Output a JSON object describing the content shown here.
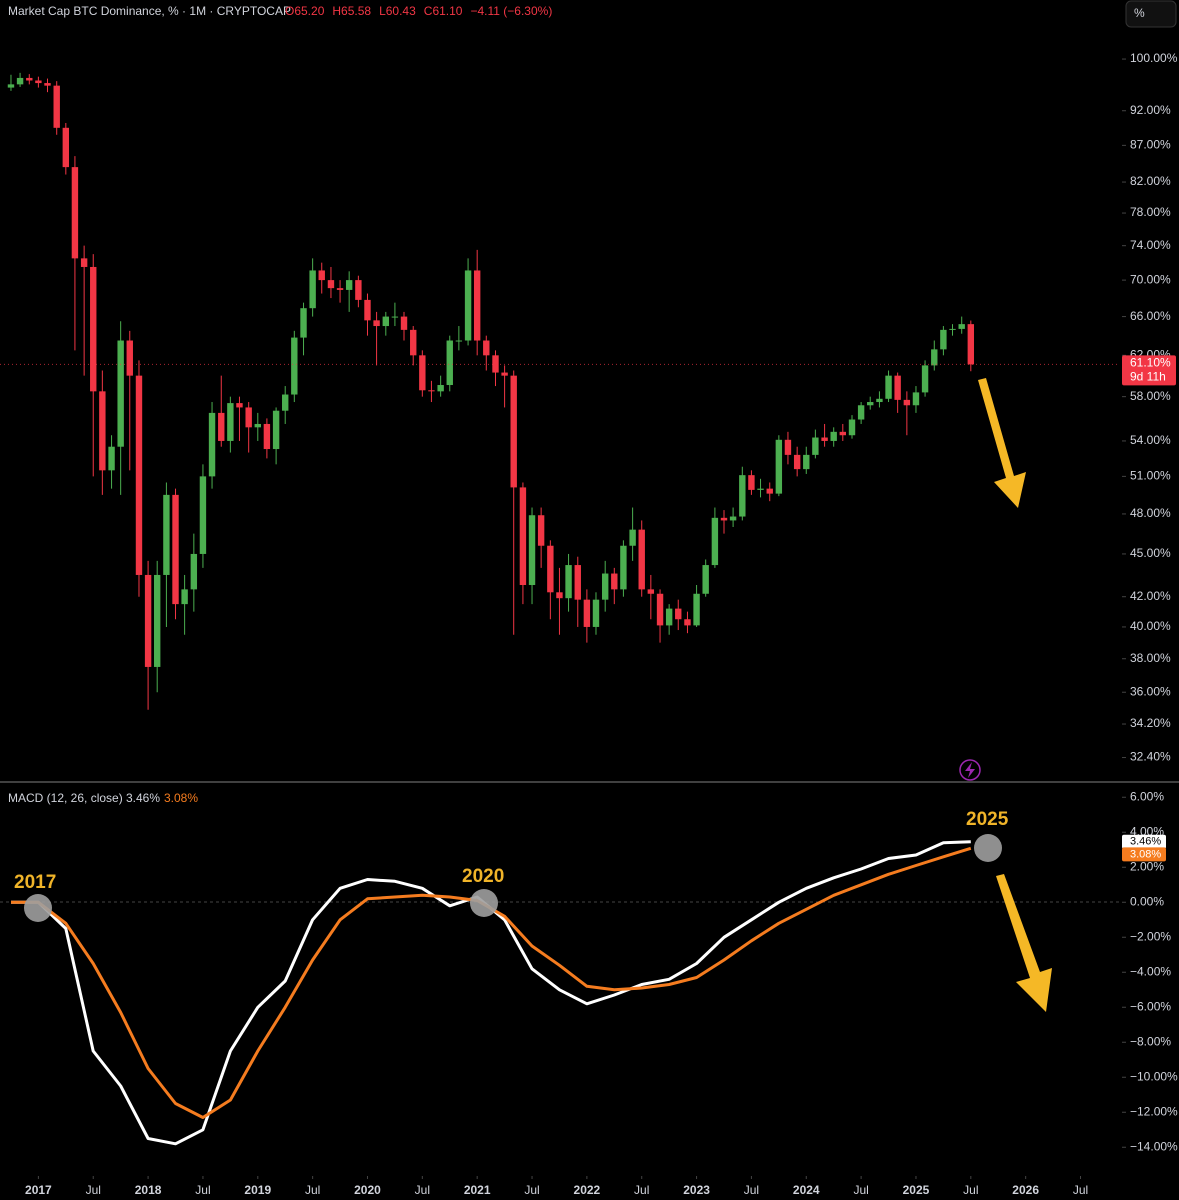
{
  "chart_data": [
    {
      "type": "candlestick",
      "title": "Market Cap BTC Dominance, % · 1M · CRYPTOCAP",
      "ohlc": [
        "O65.20",
        "H65.58",
        "L60.43",
        "C61.10",
        "−4.11 (−6.30%)"
      ],
      "scale_button": "%",
      "last_price_label": "61.10%",
      "countdown": "9d 11h",
      "up_color": "#4caf50",
      "down_color": "#f23645",
      "log_scale": true,
      "grid": false,
      "xlim": [
        2016.65,
        2026.86
      ],
      "ylim": [
        31.5,
        104.8
      ],
      "yticks": [
        {
          "value": 100,
          "label": "100.00%"
        },
        {
          "value": 92,
          "label": "92.00%"
        },
        {
          "value": 87,
          "label": "87.00%"
        },
        {
          "value": 82,
          "label": "82.00%"
        },
        {
          "value": 78,
          "label": "78.00%"
        },
        {
          "value": 74,
          "label": "74.00%"
        },
        {
          "value": 70,
          "label": "70.00%"
        },
        {
          "value": 66,
          "label": "66.00%"
        },
        {
          "value": 62,
          "label": "62.00%"
        },
        {
          "value": 58,
          "label": "58.00%"
        },
        {
          "value": 54,
          "label": "54.00%"
        },
        {
          "value": 51,
          "label": "51.00%"
        },
        {
          "value": 48,
          "label": "48.00%"
        },
        {
          "value": 45,
          "label": "45.00%"
        },
        {
          "value": 42,
          "label": "42.00%"
        },
        {
          "value": 40,
          "label": "40.00%"
        },
        {
          "value": 38,
          "label": "38.00%"
        },
        {
          "value": 36,
          "label": "36.00%"
        },
        {
          "value": 34.2,
          "label": "34.20%"
        },
        {
          "value": 32.4,
          "label": "32.40%"
        }
      ],
      "x": [
        2016.75,
        2016.833,
        2016.917,
        2017,
        2017.083,
        2017.167,
        2017.25,
        2017.333,
        2017.417,
        2017.5,
        2017.583,
        2017.667,
        2017.75,
        2017.833,
        2017.917,
        2018,
        2018.083,
        2018.167,
        2018.25,
        2018.333,
        2018.417,
        2018.5,
        2018.583,
        2018.667,
        2018.75,
        2018.833,
        2018.917,
        2019,
        2019.083,
        2019.167,
        2019.25,
        2019.333,
        2019.417,
        2019.5,
        2019.583,
        2019.667,
        2019.75,
        2019.833,
        2019.917,
        2020,
        2020.083,
        2020.167,
        2020.25,
        2020.333,
        2020.417,
        2020.5,
        2020.583,
        2020.667,
        2020.75,
        2020.833,
        2020.917,
        2021,
        2021.083,
        2021.167,
        2021.25,
        2021.333,
        2021.417,
        2021.5,
        2021.583,
        2021.667,
        2021.75,
        2021.833,
        2021.917,
        2022,
        2022.083,
        2022.167,
        2022.25,
        2022.333,
        2022.417,
        2022.5,
        2022.583,
        2022.667,
        2022.75,
        2022.833,
        2022.917,
        2023,
        2023.083,
        2023.167,
        2023.25,
        2023.333,
        2023.417,
        2023.5,
        2023.583,
        2023.667,
        2023.75,
        2023.833,
        2023.917,
        2024,
        2024.083,
        2024.167,
        2024.25,
        2024.333,
        2024.417,
        2024.5,
        2024.583,
        2024.667,
        2024.75,
        2024.833,
        2024.917,
        2025,
        2025.083,
        2025.167,
        2025.25,
        2025.333,
        2025.417,
        2025.5
      ],
      "open": [
        95.5,
        96.0,
        97.0,
        96.6,
        96.2,
        95.8,
        89.5,
        84.0,
        72.5,
        71.5,
        58.5,
        51.5,
        53.5,
        63.5,
        60.0,
        43.5,
        37.5,
        43.5,
        49.5,
        41.5,
        42.5,
        45.0,
        51.0,
        56.5,
        54.0,
        57.4,
        57.0,
        55.2,
        55.5,
        53.3,
        56.7,
        58.2,
        63.8,
        66.9,
        71.1,
        70.0,
        69.1,
        68.9,
        70.0,
        67.8,
        65.6,
        65.0,
        66.0,
        66.0,
        64.6,
        62.0,
        58.6,
        58.5,
        59.1,
        63.5,
        63.5,
        71.1,
        63.5,
        62.0,
        60.3,
        60.0,
        50.1,
        42.8,
        47.9,
        45.6,
        42.3,
        41.9,
        44.2,
        41.8,
        40.0,
        41.8,
        43.6,
        42.5,
        45.6,
        46.8,
        42.5,
        42.2,
        40.1,
        41.2,
        40.5,
        40.1,
        42.2,
        44.2,
        47.7,
        47.5,
        47.8,
        51.1,
        49.9,
        50.0,
        49.6,
        54.1,
        52.8,
        51.6,
        52.8,
        54.3,
        54.0,
        54.8,
        54.5,
        55.9,
        57.2,
        57.5,
        57.8,
        60.0,
        57.7,
        57.2,
        58.4,
        61.0,
        62.6,
        64.6,
        64.7,
        65.2
      ],
      "high": [
        97.5,
        97.8,
        97.6,
        97.2,
        96.9,
        96.5,
        90.2,
        85.5,
        74.0,
        73.0,
        60.5,
        54.5,
        65.5,
        64.5,
        61.5,
        44.5,
        44.5,
        50.5,
        50.0,
        43.5,
        46.5,
        52.0,
        57.5,
        60.0,
        58.0,
        58.0,
        57.5,
        56.5,
        56.0,
        57.0,
        59.0,
        64.5,
        67.5,
        72.5,
        72.0,
        71.5,
        70.0,
        71.0,
        70.5,
        68.5,
        66.5,
        66.5,
        67.5,
        66.5,
        65.0,
        62.5,
        59.5,
        60.0,
        64.0,
        65.0,
        72.5,
        73.5,
        64.0,
        62.5,
        61.0,
        60.5,
        50.5,
        48.5,
        48.5,
        46.0,
        44.0,
        45.0,
        44.8,
        42.5,
        42.3,
        44.5,
        44.0,
        46.0,
        48.5,
        47.5,
        43.5,
        42.5,
        41.5,
        41.8,
        41.0,
        42.8,
        44.6,
        48.5,
        48.3,
        48.5,
        51.8,
        51.5,
        50.8,
        50.5,
        54.5,
        54.8,
        53.5,
        53.5,
        55.0,
        55.5,
        55.2,
        55.5,
        56.3,
        57.5,
        58.0,
        58.5,
        60.5,
        60.3,
        58.5,
        59.0,
        61.5,
        63.5,
        65.0,
        65.2,
        66.0,
        65.58
      ],
      "low": [
        95.0,
        95.6,
        96.0,
        95.5,
        94.8,
        88.5,
        83.0,
        62.5,
        60.0,
        51.0,
        49.5,
        50.0,
        49.5,
        51.5,
        42.0,
        35.0,
        36.0,
        40.0,
        40.5,
        39.5,
        41.0,
        44.0,
        50.0,
        53.5,
        53.0,
        54.0,
        53.0,
        54.0,
        52.5,
        52.0,
        55.5,
        57.5,
        62.0,
        66.0,
        68.5,
        68.0,
        67.5,
        66.5,
        67.0,
        64.0,
        61.0,
        64.0,
        65.0,
        63.5,
        61.0,
        58.0,
        57.5,
        58.0,
        58.5,
        62.5,
        63.0,
        62.0,
        60.5,
        59.0,
        57.0,
        39.5,
        41.5,
        41.5,
        44.0,
        40.5,
        39.5,
        41.0,
        40.0,
        39.0,
        39.5,
        41.0,
        41.5,
        42.0,
        44.5,
        42.0,
        40.5,
        39.0,
        39.5,
        39.8,
        39.6,
        40.0,
        42.0,
        44.0,
        46.5,
        47.0,
        47.5,
        49.5,
        49.3,
        49.0,
        49.4,
        52.0,
        51.0,
        51.2,
        52.5,
        53.5,
        53.5,
        54.0,
        54.2,
        55.5,
        56.8,
        57.0,
        57.5,
        56.5,
        54.5,
        56.5,
        58.0,
        60.5,
        62.0,
        64.0,
        64.2,
        60.43
      ],
      "close": [
        96.0,
        97.0,
        96.6,
        96.2,
        95.8,
        89.5,
        84.0,
        72.5,
        71.5,
        58.5,
        51.5,
        53.5,
        63.5,
        60.0,
        43.5,
        37.5,
        43.5,
        49.5,
        41.5,
        42.5,
        45.0,
        51.0,
        56.5,
        54.0,
        57.4,
        57.0,
        55.2,
        55.5,
        53.3,
        56.7,
        58.2,
        63.8,
        66.9,
        71.1,
        70.0,
        69.1,
        68.9,
        70.0,
        67.8,
        65.6,
        65.0,
        66.0,
        66.0,
        64.6,
        62.0,
        58.6,
        58.5,
        59.1,
        63.5,
        63.5,
        71.1,
        63.5,
        62.0,
        60.3,
        60.0,
        50.1,
        42.8,
        47.9,
        45.6,
        42.3,
        41.9,
        44.2,
        41.8,
        40.0,
        41.8,
        43.6,
        42.5,
        45.6,
        46.8,
        42.5,
        42.2,
        40.1,
        41.2,
        40.5,
        40.1,
        42.2,
        44.2,
        47.7,
        47.5,
        47.8,
        51.1,
        49.9,
        50.0,
        49.6,
        54.1,
        52.8,
        51.6,
        52.8,
        54.3,
        54.0,
        54.8,
        54.5,
        55.9,
        57.2,
        57.5,
        57.8,
        60.0,
        57.7,
        57.2,
        58.4,
        61.0,
        62.6,
        64.6,
        64.7,
        65.2,
        61.1
      ]
    },
    {
      "type": "line",
      "title": "MACD (12, 26, close)",
      "grid": false,
      "xlim": [
        2016.65,
        2026.86
      ],
      "ylim": [
        -15.3,
        6.7
      ],
      "yticks": [
        {
          "value": 6,
          "label": "6.00%"
        },
        {
          "value": 4,
          "label": "4.00%"
        },
        {
          "value": 2,
          "label": "2.00%"
        },
        {
          "value": 0,
          "label": "0.00%"
        },
        {
          "value": -2,
          "label": "−2.00%"
        },
        {
          "value": -4,
          "label": "−4.00%"
        },
        {
          "value": -6,
          "label": "−6.00%"
        },
        {
          "value": -8,
          "label": "−8.00%"
        },
        {
          "value": -10,
          "label": "−10.00%"
        },
        {
          "value": -12,
          "label": "−12.00%"
        },
        {
          "value": -14,
          "label": "−14.00%"
        }
      ],
      "xticks": [
        {
          "value": 2017,
          "label": "2017"
        },
        {
          "value": 2017.5,
          "label": "Jul"
        },
        {
          "value": 2018,
          "label": "2018"
        },
        {
          "value": 2018.5,
          "label": "Jul"
        },
        {
          "value": 2019,
          "label": "2019"
        },
        {
          "value": 2019.5,
          "label": "Jul"
        },
        {
          "value": 2020,
          "label": "2020"
        },
        {
          "value": 2020.5,
          "label": "Jul"
        },
        {
          "value": 2021,
          "label": "2021"
        },
        {
          "value": 2021.5,
          "label": "Jul"
        },
        {
          "value": 2022,
          "label": "2022"
        },
        {
          "value": 2022.5,
          "label": "Jul"
        },
        {
          "value": 2023,
          "label": "2023"
        },
        {
          "value": 2023.5,
          "label": "Jul"
        },
        {
          "value": 2024,
          "label": "2024"
        },
        {
          "value": 2024.5,
          "label": "Jul"
        },
        {
          "value": 2025,
          "label": "2025"
        },
        {
          "value": 2025.5,
          "label": "Jul"
        },
        {
          "value": 2026,
          "label": "2026"
        },
        {
          "value": 2026.5,
          "label": "Jul"
        }
      ],
      "x": [
        2016.75,
        2017,
        2017.25,
        2017.5,
        2017.75,
        2018,
        2018.25,
        2018.5,
        2018.75,
        2019,
        2019.25,
        2019.5,
        2019.75,
        2020,
        2020.25,
        2020.5,
        2020.75,
        2021,
        2021.25,
        2021.5,
        2021.75,
        2022,
        2022.25,
        2022.5,
        2022.75,
        2023,
        2023.25,
        2023.5,
        2023.75,
        2024,
        2024.25,
        2024.5,
        2024.75,
        2025,
        2025.25,
        2025.5
      ],
      "series": [
        {
          "color": "#ffffff",
          "last_label": "3.46%",
          "values": [
            0,
            0,
            -1.5,
            -8.5,
            -10.5,
            -13.5,
            -13.8,
            -13,
            -8.5,
            -6,
            -4.5,
            -1,
            0.8,
            1.3,
            1.2,
            0.8,
            -0.2,
            0.3,
            -1,
            -3.8,
            -5,
            -5.8,
            -5.3,
            -4.7,
            -4.4,
            -3.5,
            -2,
            -1,
            0,
            0.8,
            1.4,
            1.9,
            2.5,
            2.7,
            3.4,
            3.46
          ]
        },
        {
          "color": "#f57c1f",
          "last_label": "3.08%",
          "values": [
            0,
            0,
            -1.2,
            -3.5,
            -6.3,
            -9.5,
            -11.5,
            -12.3,
            -11.3,
            -8.5,
            -6,
            -3.3,
            -1,
            0.2,
            0.3,
            0.4,
            0.3,
            0.1,
            -0.8,
            -2.5,
            -3.6,
            -4.8,
            -5,
            -4.9,
            -4.7,
            -4.3,
            -3.3,
            -2.2,
            -1.2,
            -0.4,
            0.4,
            1,
            1.6,
            2.1,
            2.6,
            3.08
          ]
        }
      ],
      "annotations": [
        "2017",
        "2020",
        "2025"
      ]
    }
  ]
}
